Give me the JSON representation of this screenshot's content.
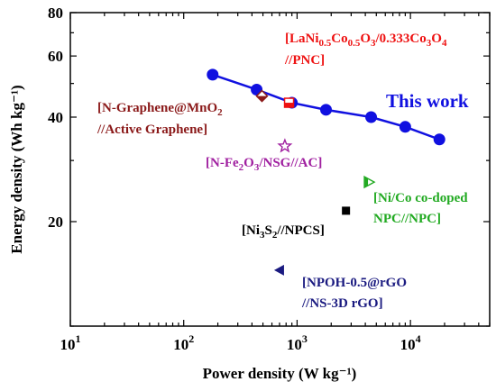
{
  "chart_data": {
    "type": "scatter",
    "xlabel": "Power density (W kg⁻¹)",
    "ylabel": "Energy density (Wh kg⁻¹)",
    "x_scale": "log",
    "y_scale": "log",
    "xlim": [
      10,
      50000
    ],
    "ylim": [
      10,
      80
    ],
    "x_tick_labels": [
      {
        "value": 10,
        "base": "10",
        "exp": "1"
      },
      {
        "value": 100,
        "base": "10",
        "exp": "2"
      },
      {
        "value": 1000,
        "base": "10",
        "exp": "3"
      },
      {
        "value": 10000,
        "base": "10",
        "exp": "4"
      }
    ],
    "y_tick_labels": [
      {
        "value": 20,
        "label": "20"
      },
      {
        "value": 40,
        "label": "40"
      },
      {
        "value": 60,
        "label": "60"
      },
      {
        "value": 80,
        "label": "80"
      }
    ],
    "grid": false,
    "this_work": {
      "label": "This work",
      "color": "#1010e0",
      "x": [
        180,
        440,
        900,
        1800,
        4500,
        9000,
        18000
      ],
      "y": [
        53,
        48,
        44,
        42,
        40,
        37.5,
        34.5
      ]
    },
    "comparisons": [
      {
        "marker": "square-half-red",
        "color": "#ee1111",
        "x": 850,
        "y": 44,
        "label_lines": [
          [
            [
              "t",
              "[LaNi"
            ],
            [
              "sub",
              "0.5"
            ],
            [
              "t",
              "Co"
            ],
            [
              "sub",
              "0.5"
            ],
            [
              "t",
              "O"
            ],
            [
              "sub",
              "3"
            ],
            [
              "t",
              "/0.333Co"
            ],
            [
              "sub",
              "3"
            ],
            [
              "t",
              "O"
            ],
            [
              "sub",
              "4"
            ]
          ],
          [
            [
              "t",
              "//PNC]"
            ]
          ]
        ]
      },
      {
        "marker": "diamond-half",
        "color": "#8b1a1a",
        "x": 490,
        "y": 46,
        "label_lines": [
          [
            [
              "t",
              "[N-Graphene@MnO"
            ],
            [
              "sub",
              "2"
            ]
          ],
          [
            [
              "t",
              "//Active Graphene]"
            ]
          ]
        ]
      },
      {
        "marker": "star-open",
        "color": "#a020a0",
        "x": 780,
        "y": 33,
        "label_lines": [
          [
            [
              "t",
              "[N-Fe"
            ],
            [
              "sub",
              "2"
            ],
            [
              "t",
              "O"
            ],
            [
              "sub",
              "3"
            ],
            [
              "t",
              "/NSG//AC]"
            ]
          ]
        ]
      },
      {
        "marker": "triangle-right-half",
        "color": "#22aa22",
        "x": 4300,
        "y": 26,
        "label_lines": [
          [
            [
              "t",
              "[Ni/Co co-doped"
            ]
          ],
          [
            [
              "t",
              "NPC//NPC]"
            ]
          ]
        ]
      },
      {
        "marker": "square",
        "color": "#000000",
        "x": 2700,
        "y": 21.5,
        "label_lines": [
          [
            [
              "t",
              "[Ni"
            ],
            [
              "sub",
              "3"
            ],
            [
              "t",
              "S"
            ],
            [
              "sub",
              "2"
            ],
            [
              "t",
              "//NPCS]"
            ]
          ]
        ]
      },
      {
        "marker": "triangle-left",
        "color": "#1a1a80",
        "x": 700,
        "y": 14.5,
        "label_lines": [
          [
            [
              "t",
              "[NPOH-0.5@rGO"
            ]
          ],
          [
            [
              "t",
              "//NS-3D rGO]"
            ]
          ]
        ]
      }
    ]
  }
}
